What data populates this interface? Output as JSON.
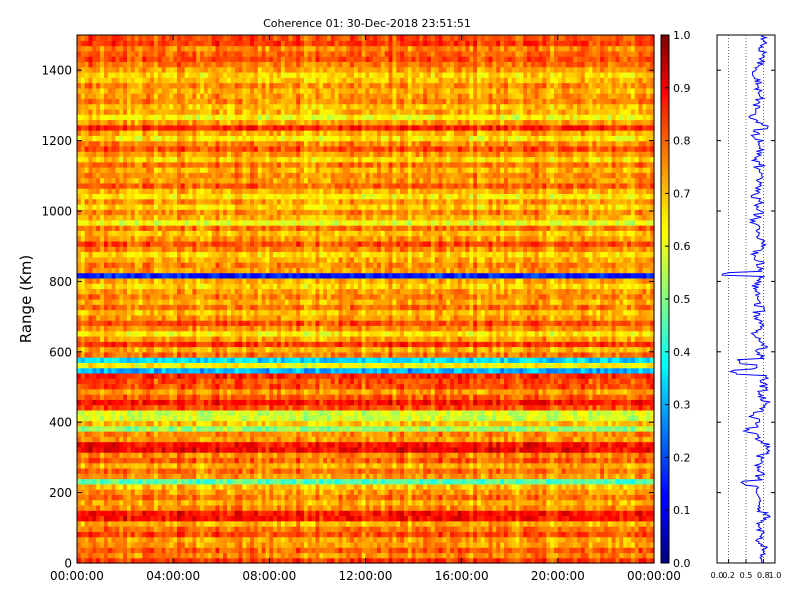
{
  "chart_data": [
    {
      "type": "heatmap",
      "title": "Coherence 01: 30-Dec-2018 23:51:51",
      "xlabel": "",
      "ylabel": "Range (Km)",
      "x_tick_labels": [
        "00:00:00",
        "04:00:00",
        "08:00:00",
        "12:00:00",
        "16:00:00",
        "20:00:00",
        "00:00:00"
      ],
      "xlim_hours": [
        0,
        24
      ],
      "ylim": [
        0,
        1500
      ],
      "y_ticks": [
        0,
        200,
        400,
        600,
        800,
        1000,
        1200,
        1400
      ],
      "grid": false,
      "colormap": "jet",
      "colorbar": {
        "range": [
          0,
          1
        ],
        "ticks": [
          "0.0",
          "0.1",
          "0.2",
          "0.3",
          "0.4",
          "0.5",
          "0.6",
          "0.7",
          "0.8",
          "0.9",
          "1.0"
        ]
      },
      "range_profile_kmcoherence": [
        [
          0,
          0.82
        ],
        [
          15,
          0.74
        ],
        [
          30,
          0.78
        ],
        [
          45,
          0.8
        ],
        [
          60,
          0.72
        ],
        [
          75,
          0.8
        ],
        [
          90,
          0.76
        ],
        [
          105,
          0.7
        ],
        [
          120,
          0.82
        ],
        [
          135,
          0.86
        ],
        [
          150,
          0.74
        ],
        [
          165,
          0.7
        ],
        [
          180,
          0.76
        ],
        [
          195,
          0.72
        ],
        [
          210,
          0.68
        ],
        [
          225,
          0.45
        ],
        [
          240,
          0.72
        ],
        [
          255,
          0.76
        ],
        [
          270,
          0.7
        ],
        [
          285,
          0.78
        ],
        [
          300,
          0.74
        ],
        [
          315,
          0.88
        ],
        [
          330,
          0.86
        ],
        [
          345,
          0.72
        ],
        [
          360,
          0.74
        ],
        [
          375,
          0.52
        ],
        [
          390,
          0.68
        ],
        [
          405,
          0.74
        ],
        [
          420,
          0.58
        ],
        [
          435,
          0.8
        ],
        [
          450,
          0.86
        ],
        [
          465,
          0.78
        ],
        [
          480,
          0.72
        ],
        [
          495,
          0.82
        ],
        [
          510,
          0.8
        ],
        [
          525,
          0.84
        ],
        [
          540,
          0.3
        ],
        [
          555,
          0.62
        ],
        [
          570,
          0.35
        ],
        [
          585,
          0.76
        ],
        [
          600,
          0.7
        ],
        [
          615,
          0.82
        ],
        [
          630,
          0.72
        ],
        [
          645,
          0.64
        ],
        [
          660,
          0.74
        ],
        [
          675,
          0.8
        ],
        [
          690,
          0.72
        ],
        [
          705,
          0.68
        ],
        [
          720,
          0.76
        ],
        [
          735,
          0.7
        ],
        [
          750,
          0.74
        ],
        [
          765,
          0.72
        ],
        [
          780,
          0.66
        ],
        [
          795,
          0.7
        ],
        [
          810,
          0.78
        ],
        [
          820,
          0.15
        ],
        [
          835,
          0.72
        ],
        [
          850,
          0.74
        ],
        [
          865,
          0.7
        ],
        [
          880,
          0.66
        ],
        [
          895,
          0.74
        ],
        [
          910,
          0.8
        ],
        [
          925,
          0.72
        ],
        [
          940,
          0.68
        ],
        [
          955,
          0.76
        ],
        [
          970,
          0.6
        ],
        [
          985,
          0.7
        ],
        [
          1000,
          0.74
        ],
        [
          1015,
          0.66
        ],
        [
          1030,
          0.72
        ],
        [
          1045,
          0.64
        ],
        [
          1060,
          0.7
        ],
        [
          1075,
          0.78
        ],
        [
          1090,
          0.72
        ],
        [
          1105,
          0.74
        ],
        [
          1120,
          0.7
        ],
        [
          1135,
          0.76
        ],
        [
          1150,
          0.66
        ],
        [
          1165,
          0.72
        ],
        [
          1180,
          0.8
        ],
        [
          1195,
          0.74
        ],
        [
          1210,
          0.64
        ],
        [
          1225,
          0.7
        ],
        [
          1240,
          0.84
        ],
        [
          1255,
          0.72
        ],
        [
          1270,
          0.62
        ],
        [
          1285,
          0.7
        ],
        [
          1300,
          0.68
        ],
        [
          1315,
          0.74
        ],
        [
          1330,
          0.72
        ],
        [
          1345,
          0.7
        ],
        [
          1360,
          0.74
        ],
        [
          1375,
          0.68
        ],
        [
          1390,
          0.66
        ],
        [
          1405,
          0.72
        ],
        [
          1420,
          0.76
        ],
        [
          1435,
          0.8
        ],
        [
          1450,
          0.78
        ],
        [
          1465,
          0.74
        ],
        [
          1480,
          0.82
        ],
        [
          1495,
          0.8
        ]
      ]
    },
    {
      "type": "line",
      "xlim": [
        0,
        1
      ],
      "x_tick_labels": [
        "0.0",
        "0.2",
        "0.5",
        "0.8",
        "1.0"
      ],
      "ylim": [
        0,
        1500
      ],
      "color": "#0000ff"
    }
  ]
}
